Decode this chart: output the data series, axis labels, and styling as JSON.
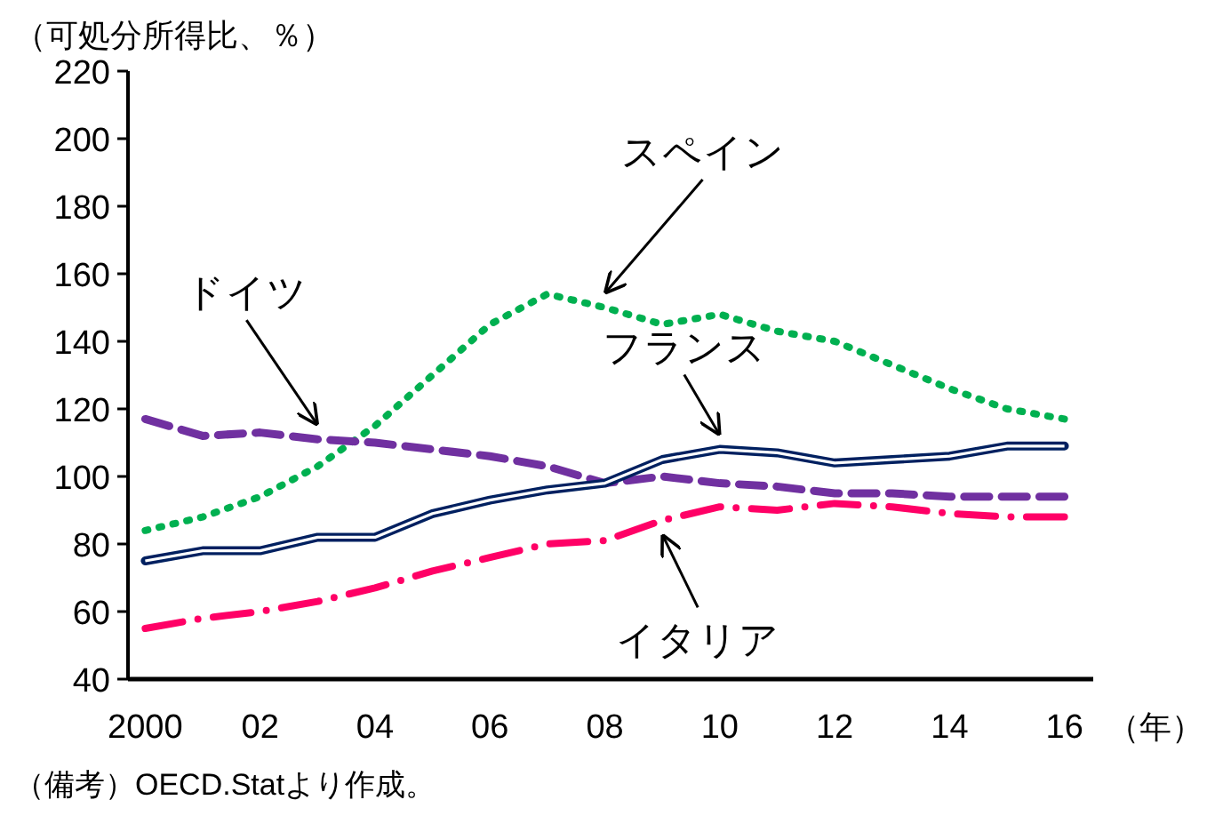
{
  "chart_data": {
    "type": "line",
    "ylabel": "（可処分所得比、％）",
    "xlabel": "（年）",
    "x": [
      2000,
      2001,
      2002,
      2003,
      2004,
      2005,
      2006,
      2007,
      2008,
      2009,
      2010,
      2011,
      2012,
      2013,
      2014,
      2015,
      2016
    ],
    "xlim": [
      1999.7,
      2016.5
    ],
    "xticks": [
      {
        "value": 2000,
        "label": "2000"
      },
      {
        "value": 2002,
        "label": "02"
      },
      {
        "value": 2004,
        "label": "04"
      },
      {
        "value": 2006,
        "label": "06"
      },
      {
        "value": 2008,
        "label": "08"
      },
      {
        "value": 2010,
        "label": "10"
      },
      {
        "value": 2012,
        "label": "12"
      },
      {
        "value": 2014,
        "label": "14"
      },
      {
        "value": 2016,
        "label": "16"
      }
    ],
    "ylim": [
      40,
      220
    ],
    "yticks": [
      40,
      60,
      80,
      100,
      120,
      140,
      160,
      180,
      200,
      220
    ],
    "grid": false,
    "legend": false,
    "marker": "none",
    "series": [
      {
        "name": "スペイン",
        "color": "#00b050",
        "line_style": "dotted",
        "values": [
          84,
          88,
          94,
          103,
          115,
          130,
          145,
          154,
          150,
          145,
          148,
          143,
          140,
          133,
          126,
          120,
          117
        ]
      },
      {
        "name": "ドイツ",
        "color": "#7030a0",
        "line_style": "dashed",
        "values": [
          117,
          112,
          113,
          111,
          110,
          108,
          106,
          103,
          98,
          100,
          98,
          97,
          95,
          95,
          94,
          94,
          94
        ]
      },
      {
        "name": "フランス",
        "color": "#002060",
        "line_style": "solid",
        "values": [
          75,
          78,
          78,
          82,
          82,
          89,
          93,
          96,
          98,
          105,
          108,
          107,
          104,
          105,
          106,
          109,
          109
        ]
      },
      {
        "name": "イタリア",
        "color": "#ff0066",
        "line_style": "dashdot",
        "values": [
          55,
          58,
          60,
          63,
          67,
          72,
          76,
          80,
          81,
          87,
          91,
          90,
          92,
          91,
          89,
          88,
          88
        ]
      }
    ],
    "annotations": [
      "（備考）OECD.Statより作成。"
    ]
  }
}
